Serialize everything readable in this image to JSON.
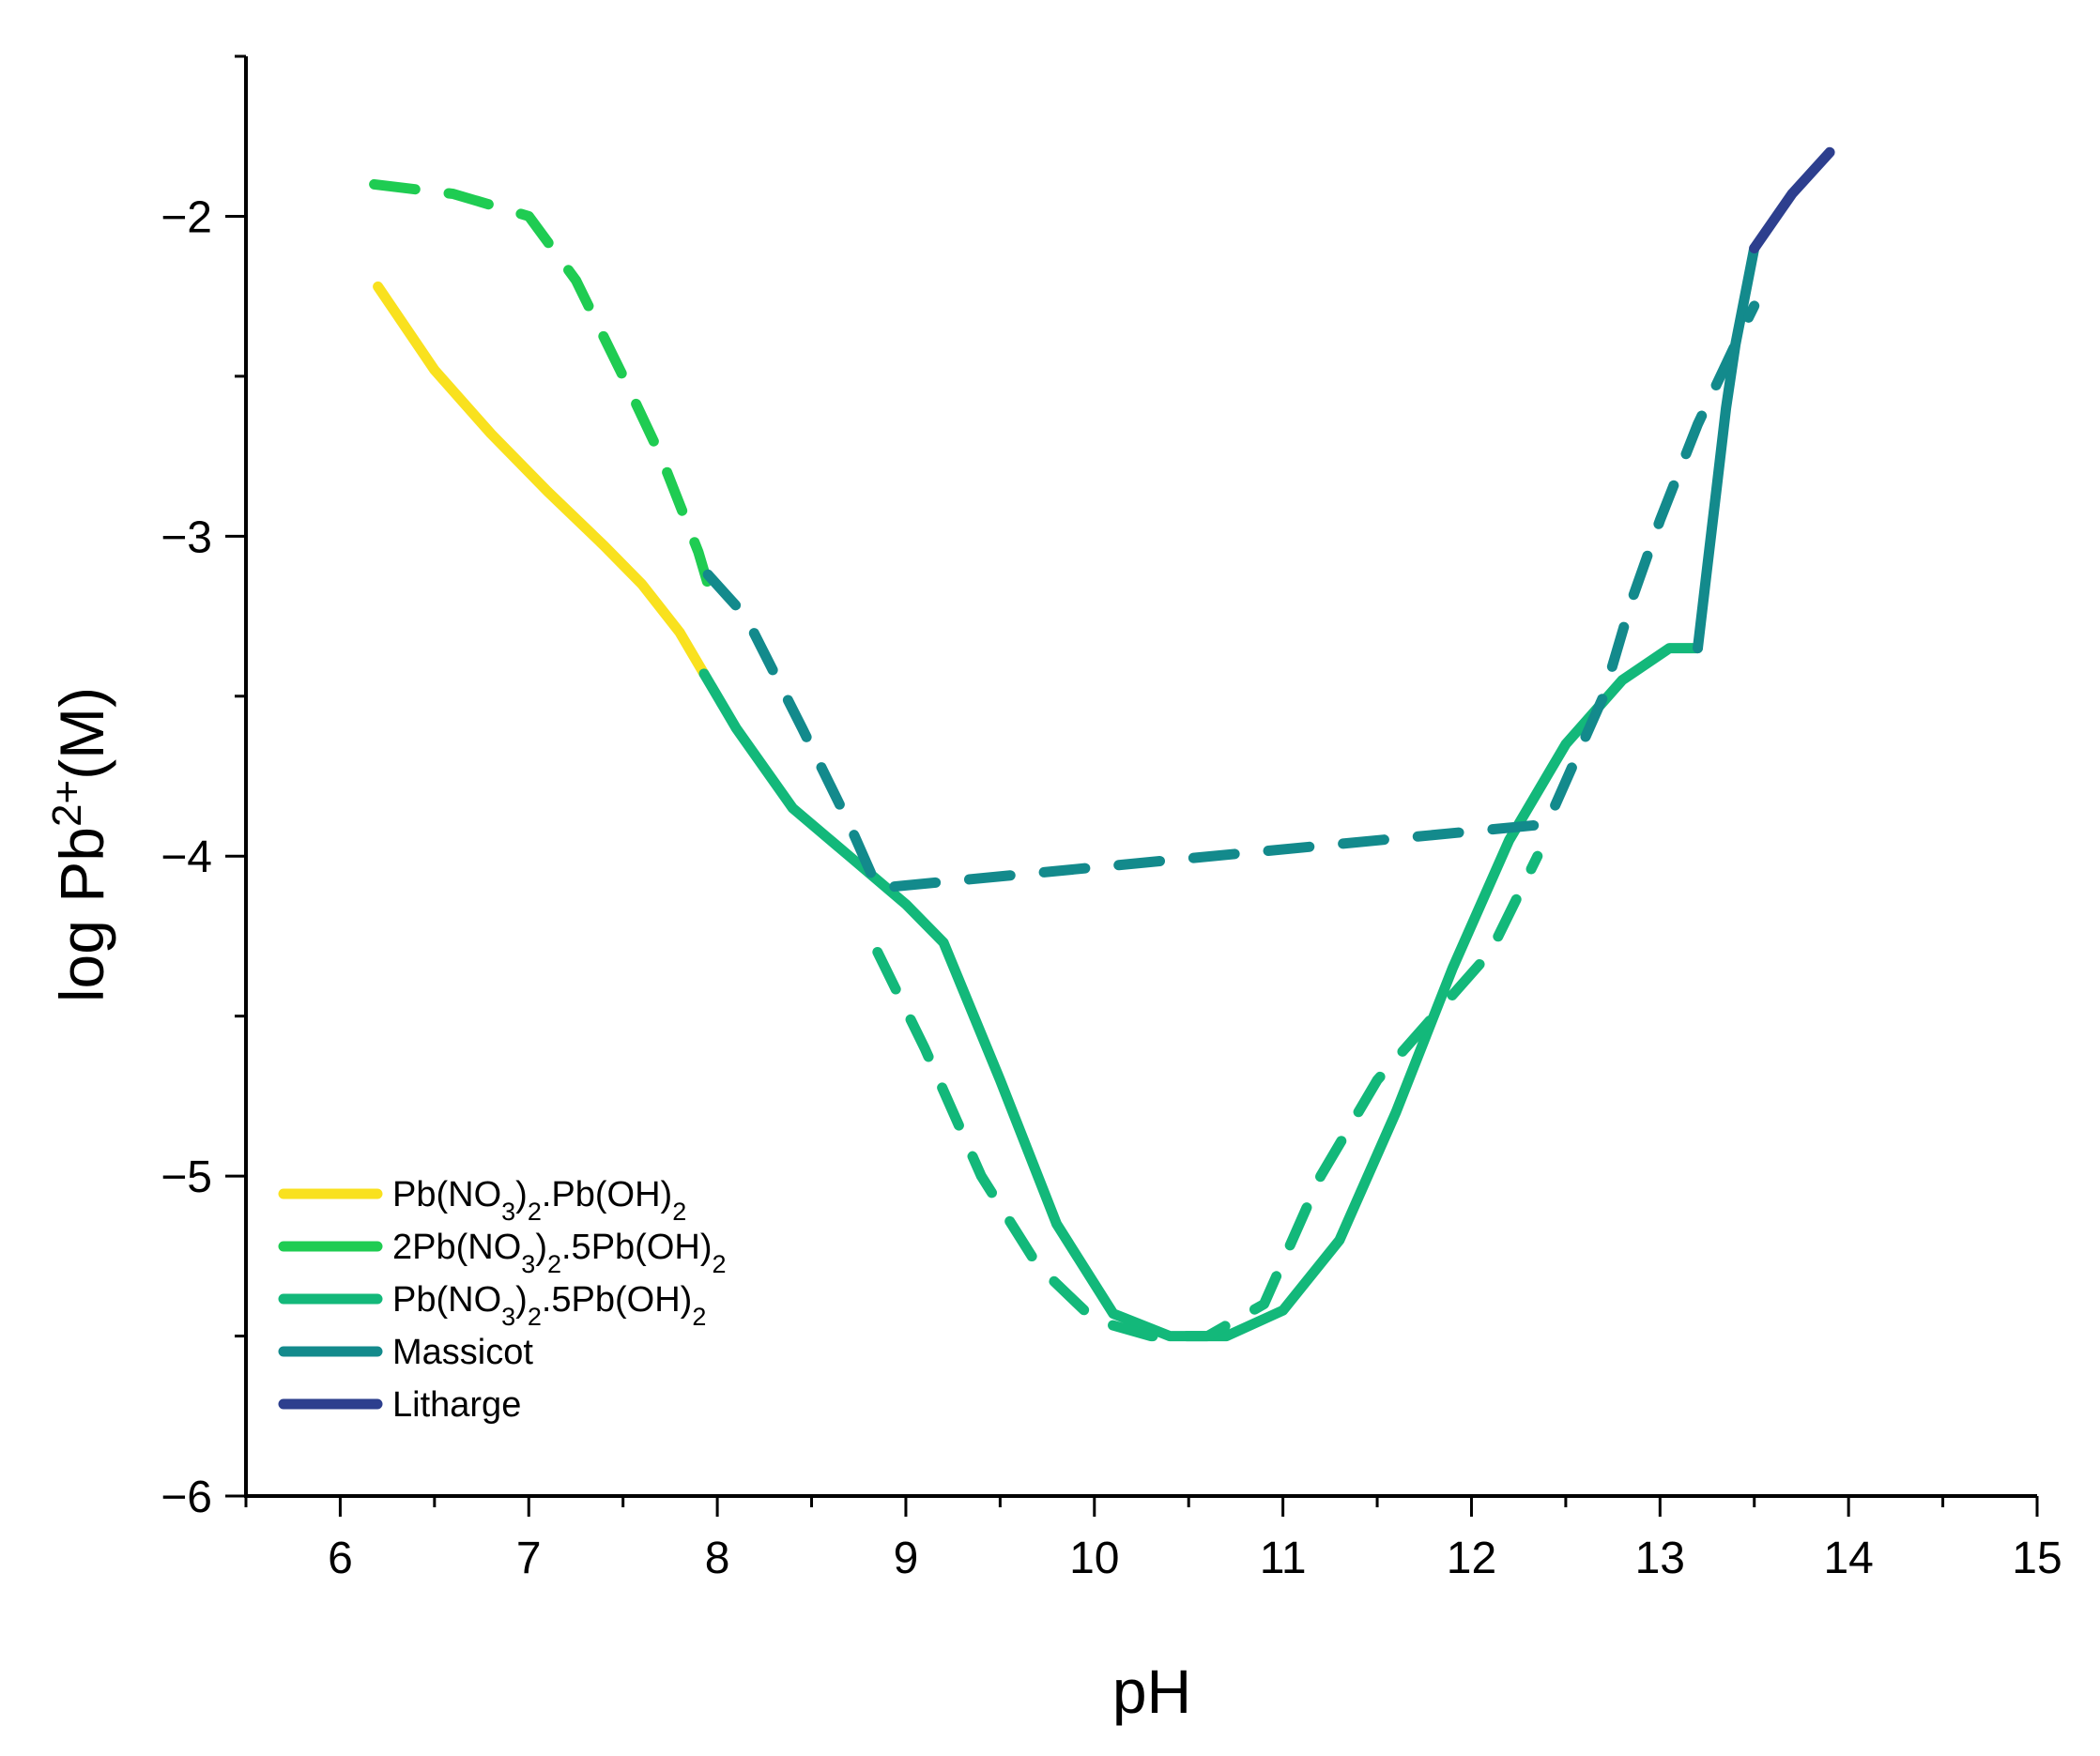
{
  "chart_data": {
    "type": "line",
    "title": "",
    "xlabel": "pH",
    "ylabel": {
      "main": "log Pb",
      "sup": "2+",
      "tail": "(M)"
    },
    "xlim": [
      5.5,
      15
    ],
    "ylim": [
      -6,
      -1.5
    ],
    "xticks": [
      6,
      7,
      8,
      9,
      10,
      11,
      12,
      13,
      14,
      15
    ],
    "yticks": [
      -6,
      -5,
      -4,
      -3,
      -2
    ],
    "ytick_labels": [
      "−6",
      "−5",
      "−4",
      "−3",
      "−2"
    ],
    "grid": false,
    "legend_position": "bottom-left",
    "legend": [
      {
        "name": "Pb(NO3)2.Pb(OH)2",
        "parts": [
          [
            "Pb(NO",
            ""
          ],
          [
            "3",
            "sub"
          ],
          [
            ")",
            ""
          ],
          [
            "2",
            "sub"
          ],
          [
            ".Pb(OH)",
            ""
          ],
          [
            "2",
            "sub"
          ]
        ],
        "color": "#f9e11e"
      },
      {
        "name": "2Pb(NO3)2.5Pb(OH)2",
        "parts": [
          [
            "2Pb(NO",
            ""
          ],
          [
            "3",
            "sub"
          ],
          [
            ")",
            ""
          ],
          [
            "2",
            "sub"
          ],
          [
            ".5Pb(OH)",
            ""
          ],
          [
            "2",
            "sub"
          ]
        ],
        "color": "#1fcc52"
      },
      {
        "name": "Pb(NO3)2.5Pb(OH)2",
        "parts": [
          [
            "Pb(NO",
            ""
          ],
          [
            "3",
            "sub"
          ],
          [
            ")",
            ""
          ],
          [
            "2",
            "sub"
          ],
          [
            ".5Pb(OH)",
            ""
          ],
          [
            "2",
            "sub"
          ]
        ],
        "color": "#13b87a"
      },
      {
        "name": "Massicot",
        "parts": [
          [
            "Massicot",
            ""
          ]
        ],
        "color": "#138a8c"
      },
      {
        "name": "Litharge",
        "parts": [
          [
            "Litharge",
            ""
          ]
        ],
        "color": "#2d3f8e"
      }
    ],
    "series": [
      {
        "name": "Pb(NO3)2.Pb(OH)2 (solid)",
        "style": "solid",
        "color": "#f9e11e",
        "x": [
          6.2,
          6.5,
          6.8,
          7.1,
          7.4,
          7.6,
          7.8,
          7.93
        ],
        "y": [
          -2.22,
          -2.48,
          -2.68,
          -2.86,
          -3.03,
          -3.15,
          -3.3,
          -3.43
        ]
      },
      {
        "name": "2Pb(NO3)2.5Pb(OH)2 (dashed)",
        "style": "dashed",
        "color": "#1fcc52",
        "x": [
          6.18,
          6.6,
          7.0,
          7.25,
          7.5,
          7.7,
          7.9,
          7.95
        ],
        "y": [
          -1.9,
          -1.93,
          -2.0,
          -2.2,
          -2.5,
          -2.75,
          -3.05,
          -3.15
        ]
      },
      {
        "name": "Pb(NO3)2.5Pb(OH)2 (solid)",
        "style": "solid",
        "color": "#13b87a",
        "x": [
          7.93,
          8.1,
          8.4,
          8.7,
          9.0,
          9.2,
          9.5,
          9.8,
          10.1,
          10.4,
          10.7,
          11.0,
          11.3,
          11.6,
          11.9,
          12.2,
          12.5,
          12.8,
          13.05,
          13.2
        ],
        "y": [
          -3.43,
          -3.6,
          -3.85,
          -4.0,
          -4.15,
          -4.27,
          -4.7,
          -5.15,
          -5.43,
          -5.5,
          -5.5,
          -5.42,
          -5.2,
          -4.8,
          -4.35,
          -3.95,
          -3.65,
          -3.45,
          -3.35,
          -3.35
        ]
      },
      {
        "name": "Pb(NO3)2.5Pb(OH)2 (dashed)",
        "style": "dashed",
        "color": "#13b87a",
        "x": [
          8.85,
          9.1,
          9.4,
          9.7,
          10.0,
          10.3,
          10.6,
          10.9,
          11.2,
          11.5,
          11.8,
          12.1,
          12.35
        ],
        "y": [
          -4.3,
          -4.6,
          -5.0,
          -5.28,
          -5.45,
          -5.5,
          -5.5,
          -5.4,
          -5.0,
          -4.7,
          -4.5,
          -4.3,
          -4.0
        ]
      },
      {
        "name": "Massicot (solid)",
        "style": "solid",
        "color": "#138a8c",
        "x": [
          13.2,
          13.25,
          13.3,
          13.35,
          13.4,
          13.45,
          13.5
        ],
        "y": [
          -3.35,
          -3.1,
          -2.85,
          -2.6,
          -2.4,
          -2.25,
          -2.1
        ]
      },
      {
        "name": "Massicot (dashed)",
        "style": "dashed",
        "color": "#138a8c",
        "x": [
          7.95,
          8.15,
          8.45,
          8.7,
          8.85,
          12.4,
          12.55,
          12.7,
          12.85,
          13.0,
          13.2,
          13.4,
          13.5
        ],
        "y": [
          -3.12,
          -3.25,
          -3.6,
          -3.9,
          -4.1,
          -3.9,
          -3.7,
          -3.5,
          -3.2,
          -2.95,
          -2.65,
          -2.4,
          -2.28
        ]
      },
      {
        "name": "Litharge (solid)",
        "style": "solid",
        "color": "#2d3f8e",
        "x": [
          13.5,
          13.7,
          13.9
        ],
        "y": [
          -2.1,
          -1.93,
          -1.8
        ]
      }
    ]
  }
}
